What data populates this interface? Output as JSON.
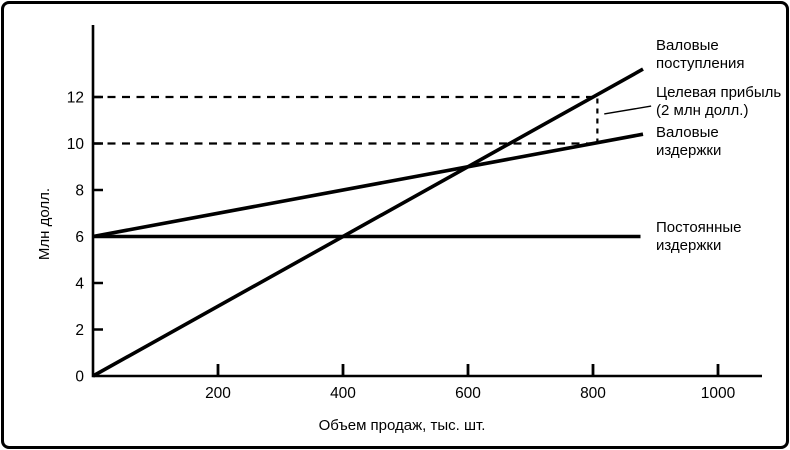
{
  "figure": {
    "background": "#ffffff",
    "border_color": "#000000"
  },
  "chart_data": {
    "type": "line",
    "title": "",
    "xlabel": "Объем продаж, тыс. шт.",
    "ylabel": "Млн долл.",
    "xlim": [
      0,
      1070
    ],
    "ylim": [
      0,
      15.1
    ],
    "x_ticks": [
      200,
      400,
      600,
      800,
      1000
    ],
    "y_ticks": [
      0,
      2,
      4,
      6,
      8,
      10,
      12
    ],
    "grid": false,
    "legend_position": "labels-right-outside",
    "colors": {
      "line": "#000000",
      "background": "#ffffff"
    },
    "series": [
      {
        "name": "Валовые поступления",
        "style": "solid",
        "stroke_width": 3.6,
        "points": [
          [
            0,
            0
          ],
          [
            880,
            13.2
          ]
        ]
      },
      {
        "name": "Валовые издержки",
        "style": "solid",
        "stroke_width": 3.6,
        "points": [
          [
            0,
            6
          ],
          [
            880,
            10.4
          ]
        ]
      },
      {
        "name": "Постоянные издержки",
        "style": "solid",
        "stroke_width": 3.6,
        "points": [
          [
            0,
            6
          ],
          [
            876,
            6
          ]
        ]
      }
    ],
    "guides": [
      {
        "name": "dash-revenue-12",
        "style": "dashed",
        "points": [
          [
            0,
            12
          ],
          [
            807,
            12
          ]
        ]
      },
      {
        "name": "dash-cost-10",
        "style": "dashed",
        "points": [
          [
            0,
            10
          ],
          [
            807,
            10
          ]
        ]
      },
      {
        "name": "dash-target-profit-gap",
        "style": "dashed-vertical",
        "points": [
          [
            807,
            10
          ],
          [
            807,
            12
          ]
        ]
      },
      {
        "name": "target-profit-leader",
        "style": "leader",
        "points": [
          [
            818,
            11.27
          ],
          [
            893,
            11.61
          ]
        ]
      }
    ],
    "annotations": {
      "gross_receipts": "Валовые\nпоступления",
      "target_profit": "Целевая прибыль\n(2 млн долл.)",
      "gross_costs": "Валовые\nиздержки",
      "fixed_costs": "Постоянные\nиздержки"
    },
    "highlighted_values": {
      "target_sales_volume_thousand_units": 800,
      "gross_receipts_at_target_mln": 12,
      "gross_costs_at_target_mln": 10,
      "target_profit_mln": 2,
      "fixed_costs_mln": 6,
      "breakeven_volume_thousand_units": 600,
      "breakeven_value_mln": 9
    }
  }
}
